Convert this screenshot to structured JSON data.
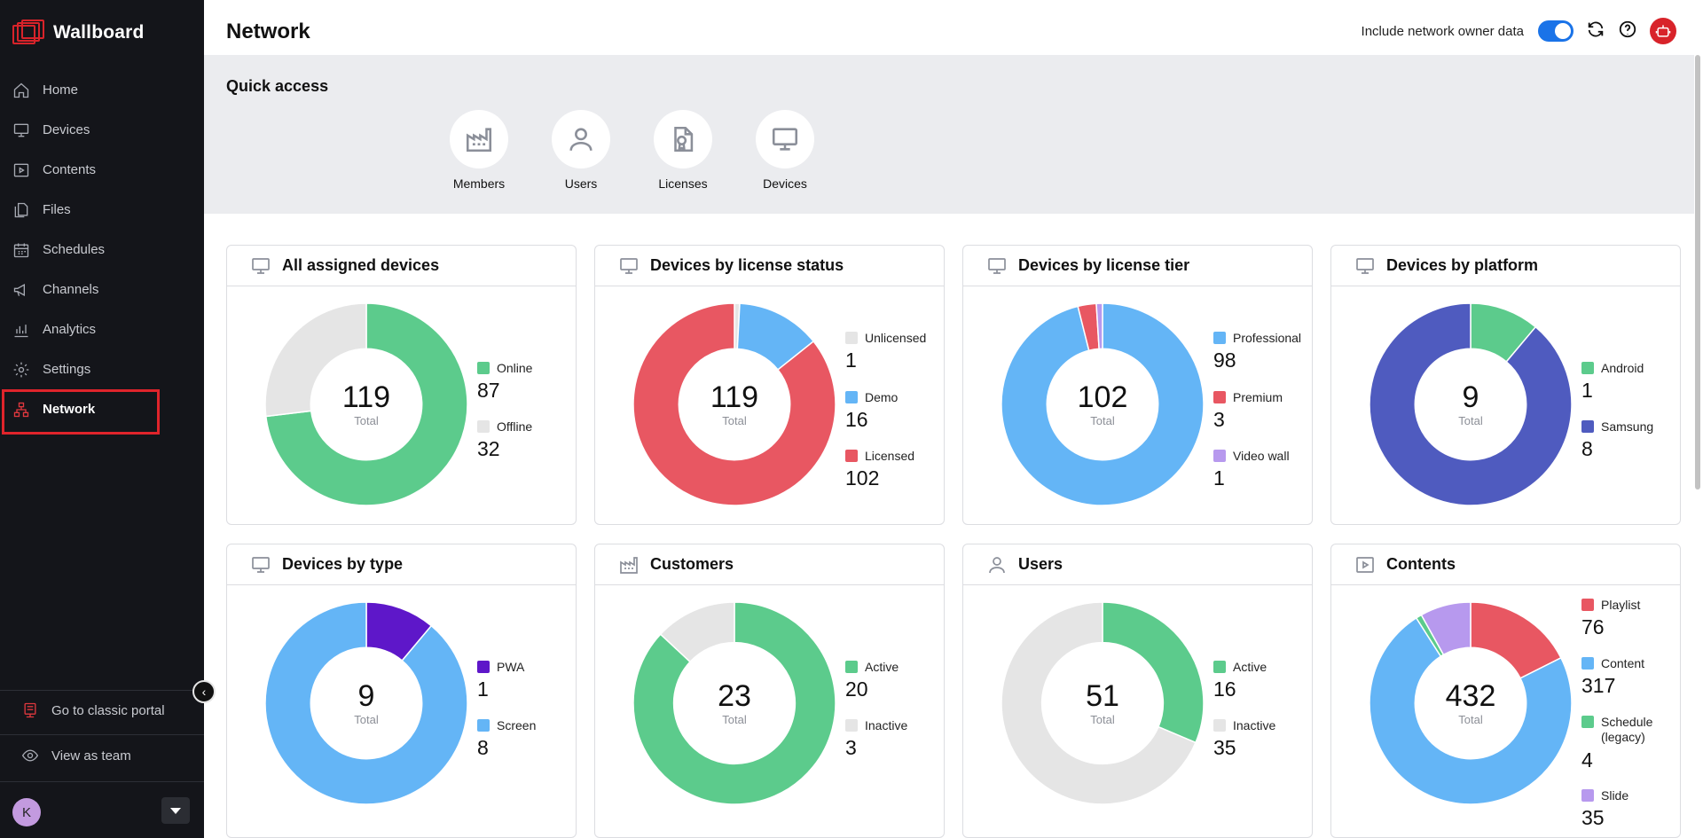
{
  "app": {
    "name": "Wallboard"
  },
  "nav": [
    {
      "label": "Home",
      "icon": "home-icon"
    },
    {
      "label": "Devices",
      "icon": "monitor-icon"
    },
    {
      "label": "Contents",
      "icon": "play-square-icon"
    },
    {
      "label": "Files",
      "icon": "files-icon"
    },
    {
      "label": "Schedules",
      "icon": "calendar-icon"
    },
    {
      "label": "Channels",
      "icon": "megaphone-icon"
    },
    {
      "label": "Analytics",
      "icon": "bar-chart-icon"
    },
    {
      "label": "Settings",
      "icon": "gear-icon"
    },
    {
      "label": "Network",
      "icon": "network-icon",
      "active": true
    }
  ],
  "sidebar_footer": {
    "classic_portal": "Go to classic portal",
    "view_as_team": "View as team",
    "avatar_initial": "K"
  },
  "header": {
    "title": "Network",
    "toggle_label": "Include network owner data",
    "toggle_on": true
  },
  "quick_access": {
    "title": "Quick access",
    "items": [
      {
        "label": "Members",
        "icon": "factory-icon"
      },
      {
        "label": "Users",
        "icon": "user-icon"
      },
      {
        "label": "Licenses",
        "icon": "license-icon"
      },
      {
        "label": "Devices",
        "icon": "monitor-icon"
      }
    ]
  },
  "colors": {
    "green": "#5ccb8c",
    "gray": "#e5e5e5",
    "blue": "#64b5f6",
    "red": "#e85762",
    "purple_light": "#b799ee",
    "indigo": "#4f5bbf",
    "violet": "#5e17c9",
    "accent": "#e0242b"
  },
  "center_label": "Total",
  "cards": [
    {
      "title": "All assigned devices",
      "icon": "monitor-icon",
      "total": "119",
      "segments": [
        {
          "name": "Online",
          "value": 87,
          "color": "#5ccb8c"
        },
        {
          "name": "Offline",
          "value": 32,
          "color": "#e5e5e5"
        }
      ]
    },
    {
      "title": "Devices by license status",
      "icon": "monitor-icon",
      "total": "119",
      "segments": [
        {
          "name": "Unlicensed",
          "value": 1,
          "color": "#e5e5e5"
        },
        {
          "name": "Demo",
          "value": 16,
          "color": "#64b5f6"
        },
        {
          "name": "Licensed",
          "value": 102,
          "color": "#e85762"
        }
      ]
    },
    {
      "title": "Devices by license tier",
      "icon": "monitor-icon",
      "total": "102",
      "segments": [
        {
          "name": "Professional",
          "value": 98,
          "color": "#64b5f6"
        },
        {
          "name": "Premium",
          "value": 3,
          "color": "#e85762"
        },
        {
          "name": "Video wall",
          "value": 1,
          "color": "#b799ee"
        }
      ]
    },
    {
      "title": "Devices by platform",
      "icon": "monitor-icon",
      "total": "9",
      "segments": [
        {
          "name": "Android",
          "value": 1,
          "color": "#5ccb8c"
        },
        {
          "name": "Samsung",
          "value": 8,
          "color": "#4f5bbf"
        }
      ]
    },
    {
      "title": "Devices by type",
      "icon": "monitor-icon",
      "total": "9",
      "segments": [
        {
          "name": "PWA",
          "value": 1,
          "color": "#5e17c9"
        },
        {
          "name": "Screen",
          "value": 8,
          "color": "#64b5f6"
        }
      ]
    },
    {
      "title": "Customers",
      "icon": "factory-icon",
      "total": "23",
      "segments": [
        {
          "name": "Active",
          "value": 20,
          "color": "#5ccb8c"
        },
        {
          "name": "Inactive",
          "value": 3,
          "color": "#e5e5e5"
        }
      ]
    },
    {
      "title": "Users",
      "icon": "user-icon",
      "total": "51",
      "segments": [
        {
          "name": "Active",
          "value": 16,
          "color": "#5ccb8c"
        },
        {
          "name": "Inactive",
          "value": 35,
          "color": "#e5e5e5"
        }
      ]
    },
    {
      "title": "Contents",
      "icon": "play-square-icon",
      "total": "432",
      "segments": [
        {
          "name": "Playlist",
          "value": 76,
          "color": "#e85762"
        },
        {
          "name": "Content",
          "value": 317,
          "color": "#64b5f6"
        },
        {
          "name": "Schedule (legacy)",
          "value": 4,
          "color": "#5ccb8c"
        },
        {
          "name": "Slide",
          "value": 35,
          "color": "#b799ee"
        }
      ]
    }
  ]
}
